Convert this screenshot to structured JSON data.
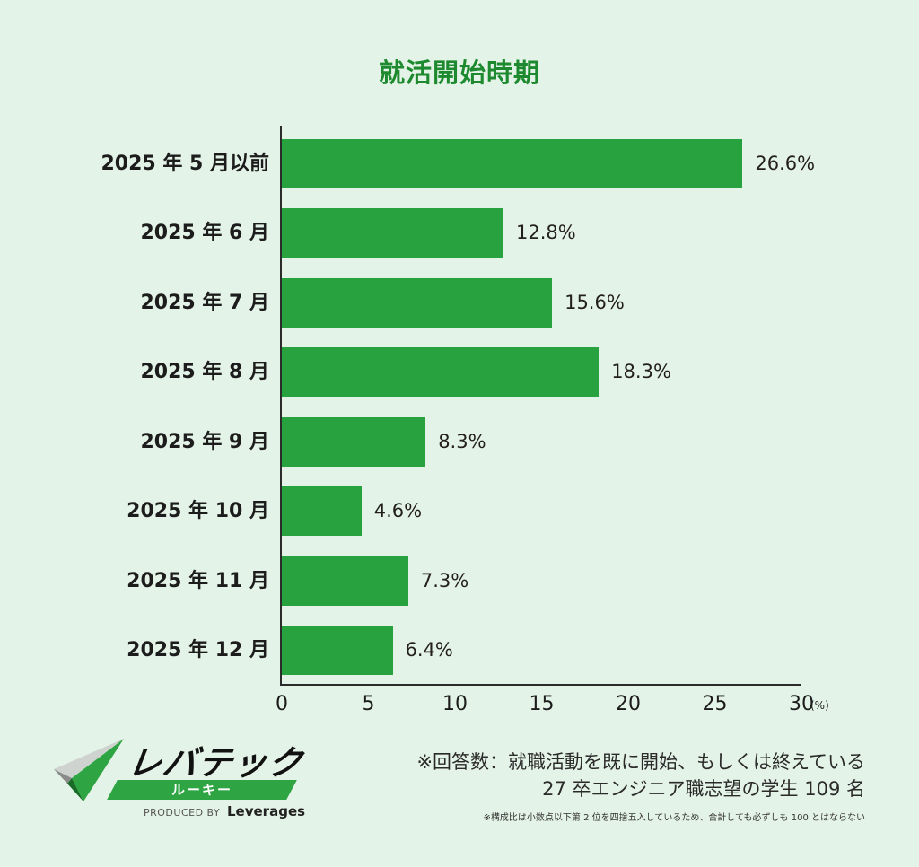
{
  "chart_data": {
    "type": "bar",
    "orientation": "horizontal",
    "title": "就活開始時期",
    "categories": [
      "2025 年 5 月以前",
      "2025 年 6 月",
      "2025 年 7 月",
      "2025 年 8 月",
      "2025 年 9 月",
      "2025 年 10 月",
      "2025 年 11 月",
      "2025 年 12 月"
    ],
    "values": [
      26.6,
      12.8,
      15.6,
      18.3,
      8.3,
      4.6,
      7.3,
      6.4
    ],
    "value_labels": [
      "26.6%",
      "12.8%",
      "15.6%",
      "18.3%",
      "8.3%",
      "4.6%",
      "7.3%",
      "6.4%"
    ],
    "xlabel": "(%)",
    "ylabel": "",
    "xlim": [
      0,
      30
    ],
    "xticks": [
      "0",
      "5",
      "10",
      "15",
      "20",
      "25",
      "30"
    ],
    "grid": false,
    "legend": null,
    "bar_color": "#28a23e"
  },
  "colors": {
    "background": "#e4f3e7",
    "title": "#1e8a2f",
    "bar": "#28a23e"
  },
  "footer": {
    "note_line1": "※回答数：就職活動を既に開始、もしくは終えている",
    "note_line2": "27 卒エンジニア職志望の学生 109 名",
    "note_small": "※構成比は小数点以下第 2 位を四捨五入しているため、合計しても必ずしも 100 とはならない"
  },
  "logo": {
    "name": "レバテック",
    "sub": "ルーキー",
    "produced_by": "PRODUCED BY",
    "brand": "Leverages"
  }
}
